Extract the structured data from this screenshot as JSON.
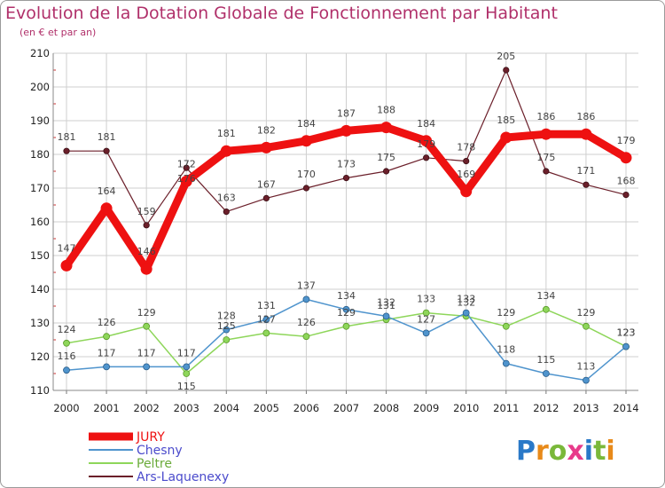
{
  "chart_data": {
    "type": "line",
    "title": "Evolution de la Dotation Globale de Fonctionnement par Habitant",
    "subtitle": "(en € et par an)",
    "x": [
      "2000",
      "2001",
      "2002",
      "2003",
      "2004",
      "2005",
      "2006",
      "2007",
      "2008",
      "2009",
      "2010",
      "2011",
      "2012",
      "2013",
      "2014"
    ],
    "ylim": [
      110,
      210
    ],
    "yticks": [
      110,
      120,
      130,
      140,
      150,
      160,
      170,
      180,
      190,
      200,
      210
    ],
    "grid": true,
    "legend_position": "bottom-left",
    "series": [
      {
        "name": "Ars-Laquenexy",
        "color": "#6b1f2a",
        "values": [
          181,
          181,
          159,
          176,
          163,
          167,
          170,
          173,
          175,
          179,
          178,
          205,
          175,
          171,
          168
        ]
      },
      {
        "name": "Peltre",
        "color": "#8ed65a",
        "values": [
          124,
          126,
          129,
          115,
          125,
          127,
          126,
          129,
          131,
          133,
          132,
          129,
          134,
          129,
          123
        ]
      },
      {
        "name": "Chesny",
        "color": "#4f94cd",
        "values": [
          116,
          117,
          117,
          117,
          128,
          131,
          137,
          134,
          132,
          127,
          133,
          118,
          115,
          113,
          123
        ]
      },
      {
        "name": "JURY",
        "color": "#ee1111",
        "values": [
          147,
          164,
          146,
          172,
          181,
          182,
          184,
          187,
          188,
          184,
          169,
          185,
          186,
          186,
          179
        ]
      }
    ],
    "legend": [
      "JURY",
      "Chesny",
      "Peltre",
      "Ars-Laquenexy"
    ]
  },
  "logo": {
    "text": "Proxiti"
  }
}
